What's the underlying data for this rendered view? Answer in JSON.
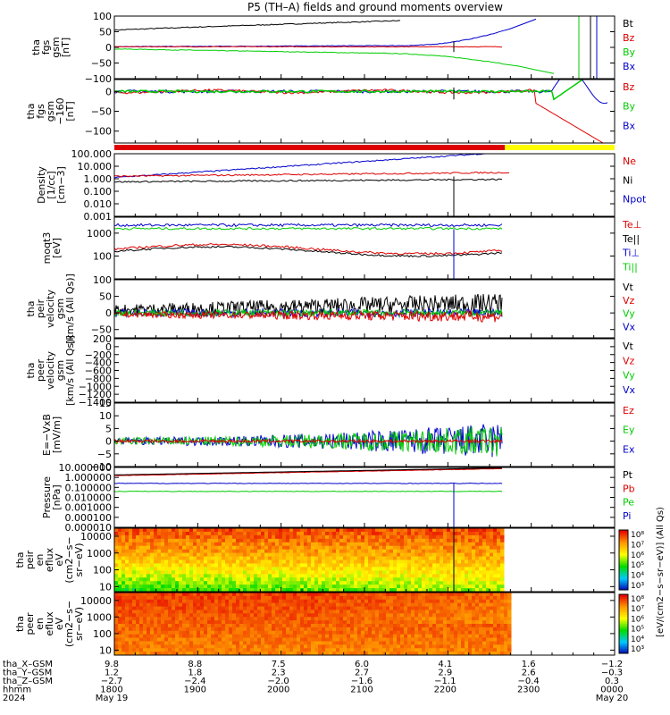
{
  "title": "P5 (TH–A) fields and ground moments overview",
  "colors": {
    "black": "#000000",
    "red": "#dd0000",
    "green": "#00cc00",
    "blue": "#0000cc",
    "yellow": "#ffff00"
  },
  "chart_data": [
    {
      "type": "line",
      "panel": "fgs",
      "ylabel": [
        "tha",
        "fgs",
        "gsm",
        "[nT]"
      ],
      "ylim": [
        -100,
        100
      ],
      "yticks": [
        "100",
        "50",
        "0",
        "−50",
        "−100"
      ],
      "ytick_values": [
        100,
        50,
        0,
        -50,
        -100
      ],
      "legend": [
        {
          "name": "Bt",
          "color": "#000000"
        },
        {
          "name": "Bz",
          "color": "#dd0000"
        },
        {
          "name": "By",
          "color": "#00cc00"
        },
        {
          "name": "Bx",
          "color": "#0000cc"
        }
      ]
    },
    {
      "type": "line",
      "panel": "fgs-dsl",
      "ylabel": [
        "tha",
        "fgs",
        "gsm",
        "−160",
        "[nT]"
      ],
      "ylim": [
        -130,
        30
      ],
      "yticks": [
        "0",
        "−50",
        "−100"
      ],
      "ytick_values": [
        0,
        -50,
        -100
      ],
      "legend": [
        {
          "name": "Bz",
          "color": "#dd0000"
        },
        {
          "name": "By",
          "color": "#00cc00"
        },
        {
          "name": "Bx",
          "color": "#0000cc"
        }
      ]
    },
    {
      "type": "line",
      "panel": "density",
      "ylabel": [
        "Density",
        "[1/cc]",
        "[cm−3]"
      ],
      "scale": "log",
      "ylim": [
        0.001,
        100
      ],
      "yticks": [
        "100.000",
        "10.000",
        "1.000",
        "0.100",
        "0.010",
        "0.001"
      ],
      "ytick_values": [
        100,
        10,
        1,
        0.1,
        0.01,
        0.001
      ],
      "legend": [
        {
          "name": "Ne",
          "color": "#dd0000"
        },
        {
          "name": "Ni",
          "color": "#000000"
        },
        {
          "name": "Npot",
          "color": "#0000cc"
        }
      ]
    },
    {
      "type": "line",
      "panel": "temperature",
      "ylabel": [
        "moqt3",
        "[eV]"
      ],
      "scale": "log",
      "ylim": [
        10,
        5000
      ],
      "yticks": [
        "1000",
        "100"
      ],
      "ytick_values": [
        1000,
        100
      ],
      "legend": [
        {
          "name": "Te⊥",
          "color": "#dd0000"
        },
        {
          "name": "Te||",
          "color": "#000000"
        },
        {
          "name": "Ti⊥",
          "color": "#0000cc"
        },
        {
          "name": "Ti||",
          "color": "#00cc00"
        }
      ]
    },
    {
      "type": "line",
      "panel": "peir-velocity",
      "ylabel": [
        "tha",
        "peir",
        "velocity",
        "gsm",
        "[km/s (All Qs)]"
      ],
      "ylim": [
        -75,
        100
      ],
      "yticks": [
        "100",
        "50",
        "0",
        "−50"
      ],
      "ytick_values": [
        100,
        50,
        0,
        -50
      ],
      "legend": [
        {
          "name": "Vt",
          "color": "#000000"
        },
        {
          "name": "Vz",
          "color": "#dd0000"
        },
        {
          "name": "Vy",
          "color": "#00cc00"
        },
        {
          "name": "Vx",
          "color": "#0000cc"
        }
      ]
    },
    {
      "type": "line",
      "panel": "peer-velocity",
      "ylabel": [
        "tha",
        "peer",
        "velocity",
        "gsm",
        "[km/s (All Qs)]"
      ],
      "ylim": [
        -1400,
        200
      ],
      "yticks": [
        "200",
        "0",
        "−200",
        "−400",
        "−600",
        "−800",
        "−1000",
        "−1200",
        "−1400"
      ],
      "ytick_values": [
        200,
        0,
        -200,
        -400,
        -600,
        -800,
        -1000,
        -1200,
        -1400
      ],
      "legend": [
        {
          "name": "Vt",
          "color": "#000000"
        },
        {
          "name": "Vz",
          "color": "#dd0000"
        },
        {
          "name": "Vy",
          "color": "#00cc00"
        },
        {
          "name": "Vx",
          "color": "#0000cc"
        }
      ]
    },
    {
      "type": "line",
      "panel": "efield",
      "ylabel": [
        "E=−VxB",
        "[mV/m]"
      ],
      "ylim": [
        -10,
        15
      ],
      "yticks": [
        "15",
        "10",
        "5",
        "0",
        "−5",
        "−10"
      ],
      "ytick_values": [
        15,
        10,
        5,
        0,
        -5,
        -10
      ],
      "legend": [
        {
          "name": "Ez",
          "color": "#dd0000"
        },
        {
          "name": "Ey",
          "color": "#00cc00"
        },
        {
          "name": "Ex",
          "color": "#0000cc"
        }
      ]
    },
    {
      "type": "line",
      "panel": "pressure",
      "ylabel": [
        "Pressure",
        "[nPa]"
      ],
      "scale": "log",
      "ylim": [
        1e-05,
        10
      ],
      "yticks": [
        "10.000000",
        "1.000000",
        "0.100000",
        "0.010000",
        "0.001000",
        "0.000100",
        "0.000010"
      ],
      "ytick_values": [
        10,
        1,
        0.1,
        0.01,
        0.001,
        0.0001,
        1e-05
      ],
      "legend": [
        {
          "name": "Pt",
          "color": "#000000"
        },
        {
          "name": "Pb",
          "color": "#dd0000"
        },
        {
          "name": "Pe",
          "color": "#00cc00"
        },
        {
          "name": "Pi",
          "color": "#0000cc"
        }
      ]
    },
    {
      "type": "heatmap",
      "panel": "peir-spectrogram",
      "ylabel": [
        "tha",
        "peir",
        "en",
        "eflux",
        "eV",
        "(cm2−s−",
        "sr−eV)"
      ],
      "scale": "log",
      "ylim": [
        5,
        30000
      ],
      "yticks": [
        "10000",
        "1000",
        "100",
        "10"
      ],
      "ytick_values": [
        10000,
        1000,
        100,
        10
      ]
    },
    {
      "type": "heatmap",
      "panel": "peer-spectrogram",
      "ylabel": [
        "tha",
        "peer",
        "en",
        "eflux",
        "eV",
        "(cm2−s−",
        "sr−eV)"
      ],
      "scale": "log",
      "ylim": [
        5,
        30000
      ],
      "yticks": [
        "10000",
        "1000",
        "100",
        "10"
      ],
      "ytick_values": [
        10000,
        1000,
        100,
        10
      ]
    }
  ],
  "colorbar": {
    "labels": [
      "10⁸",
      "10⁷",
      "10⁶",
      "10⁵",
      "10⁴",
      "10³"
    ],
    "label_text": "[eV/(cm2−s−sr−eV)] (All Qs)",
    "label_text_2": "[eV/(cm2−s−sr−eV)]"
  },
  "time_axis": {
    "rows": [
      {
        "name": "tha_X–GSM",
        "values": [
          "9.8",
          "8.8",
          "7.5",
          "6.0",
          "4.1",
          "1.6",
          "−1.2"
        ]
      },
      {
        "name": "tha_Y–GSM",
        "values": [
          "1.2",
          "1.8",
          "2.3",
          "2.7",
          "2.9",
          "2.6",
          "−0.3"
        ]
      },
      {
        "name": "tha_Z–GSM",
        "values": [
          "−2.7",
          "−2.4",
          "−2.0",
          "−1.6",
          "−1.1",
          "−0.4",
          "0.3"
        ]
      },
      {
        "name": "hhmm",
        "values": [
          "1800",
          "1900",
          "2000",
          "2100",
          "2200",
          "2300",
          "0000"
        ]
      }
    ],
    "year": "2024",
    "date_start": "May 19",
    "date_end": "May 20"
  }
}
